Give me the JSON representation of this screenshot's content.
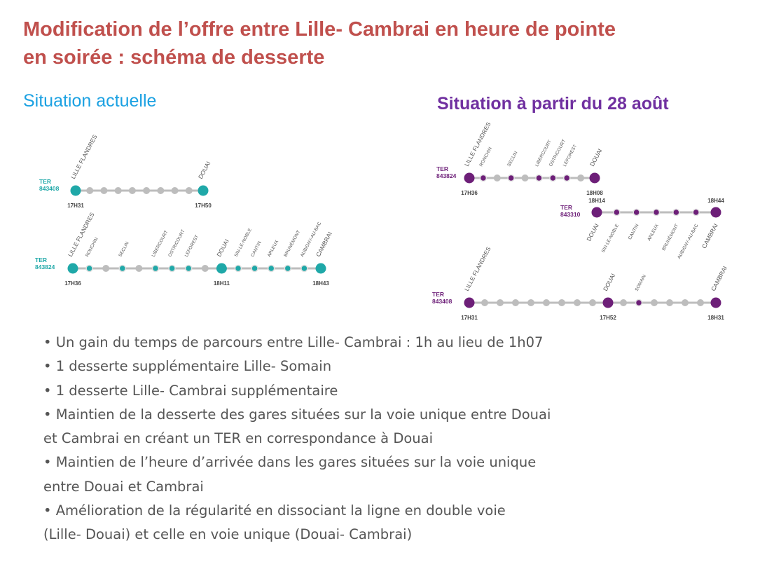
{
  "title": {
    "line1": "Modification de l’offre entre Lille- Cambrai en heure de pointe",
    "line2": "en soirée : schéma de desserte"
  },
  "left_heading": "Situation actuelle",
  "right_heading": "Situation à partir du 28 août",
  "colors": {
    "title": "#c0504d",
    "current": "#1fa8a8",
    "future": "#6d1f78",
    "line": "#bdbdbd"
  },
  "diagrams": {
    "current": [
      {
        "label": "TER",
        "number": "843408",
        "stations": [
          {
            "name": "LILLE FLANDRES",
            "stop": true,
            "time": "17H31"
          },
          {
            "name": "",
            "stop": false
          },
          {
            "name": "",
            "stop": false
          },
          {
            "name": "",
            "stop": false
          },
          {
            "name": "",
            "stop": false
          },
          {
            "name": "",
            "stop": false
          },
          {
            "name": "",
            "stop": false
          },
          {
            "name": "",
            "stop": false
          },
          {
            "name": "",
            "stop": false
          },
          {
            "name": "DOUAI",
            "stop": true,
            "time": "17H50"
          }
        ]
      },
      {
        "label": "TER",
        "number": "843824",
        "stations": [
          {
            "name": "LILLE FLANDRES",
            "stop": true,
            "time": "17H36"
          },
          {
            "name": "RONCHIN",
            "stop": true
          },
          {
            "name": "",
            "stop": false
          },
          {
            "name": "SECLIN",
            "stop": true
          },
          {
            "name": "",
            "stop": false
          },
          {
            "name": "LIBERCOURT",
            "stop": true
          },
          {
            "name": "OSTRICOURT",
            "stop": true
          },
          {
            "name": "LEFOREST",
            "stop": true
          },
          {
            "name": "",
            "stop": false
          },
          {
            "name": "DOUAI",
            "stop": true,
            "time": "18H11"
          },
          {
            "name": "SIN-LE-NOBLE",
            "stop": true
          },
          {
            "name": "CANTIN",
            "stop": true
          },
          {
            "name": "ARLEUX",
            "stop": true
          },
          {
            "name": "BRUNÉMONT",
            "stop": true
          },
          {
            "name": "AUBIGNY-AU-BAC",
            "stop": true
          },
          {
            "name": "CAMBRAI",
            "stop": true,
            "time": "18H43"
          }
        ]
      }
    ],
    "future": [
      {
        "label": "TER",
        "number": "843824",
        "stations": [
          {
            "name": "LILLE FLANDRES",
            "stop": true,
            "time": "17H36"
          },
          {
            "name": "RONCHIN",
            "stop": true
          },
          {
            "name": "",
            "stop": false
          },
          {
            "name": "SECLIN",
            "stop": true
          },
          {
            "name": "",
            "stop": false
          },
          {
            "name": "LIBERCOURT",
            "stop": true
          },
          {
            "name": "OSTRICOURT",
            "stop": true
          },
          {
            "name": "LEFOREST",
            "stop": true
          },
          {
            "name": "",
            "stop": false
          },
          {
            "name": "DOUAI",
            "stop": true,
            "time": "18H08"
          }
        ]
      },
      {
        "label": "TER",
        "number": "843310",
        "stations": [
          {
            "name": "DOUAI",
            "stop": true,
            "time": "18H14"
          },
          {
            "name": "SIN-LE-NOBLE",
            "stop": true
          },
          {
            "name": "CANTIN",
            "stop": true
          },
          {
            "name": "ARLEUX",
            "stop": true
          },
          {
            "name": "BRUNÉMONT",
            "stop": true
          },
          {
            "name": "AUBIGNY-AU-BAC",
            "stop": true
          },
          {
            "name": "CAMBRAI",
            "stop": true,
            "time": "18H44"
          }
        ]
      },
      {
        "label": "TER",
        "number": "843408",
        "stations": [
          {
            "name": "LILLE FLANDRES",
            "stop": true,
            "time": "17H31"
          },
          {
            "name": "",
            "stop": false
          },
          {
            "name": "",
            "stop": false
          },
          {
            "name": "",
            "stop": false
          },
          {
            "name": "",
            "stop": false
          },
          {
            "name": "",
            "stop": false
          },
          {
            "name": "",
            "stop": false
          },
          {
            "name": "",
            "stop": false
          },
          {
            "name": "",
            "stop": false
          },
          {
            "name": "DOUAI",
            "stop": true,
            "time": "17H52"
          },
          {
            "name": "",
            "stop": false
          },
          {
            "name": "SOMAIN",
            "stop": true
          },
          {
            "name": "",
            "stop": false
          },
          {
            "name": "",
            "stop": false
          },
          {
            "name": "",
            "stop": false
          },
          {
            "name": "",
            "stop": false
          },
          {
            "name": "CAMBRAI",
            "stop": true,
            "time": "18H31"
          }
        ]
      }
    ]
  },
  "bullets": [
    "• Un gain du temps de parcours entre  Lille- Cambrai : 1h au lieu de 1h07",
    "• 1 desserte supplémentaire Lille- Somain",
    "• 1 desserte Lille- Cambrai supplémentaire",
    "• Maintien de la desserte des gares situées sur la voie unique entre Douai",
    "et Cambrai en créant un TER en correspondance à Douai",
    "• Maintien de l’heure d’arrivée dans les gares situées sur la voie unique",
    "entre Douai et Cambrai",
    "• Amélioration de la régularité en dissociant la ligne en double voie",
    "(Lille- Douai) et celle en voie unique (Douai- Cambrai)"
  ]
}
